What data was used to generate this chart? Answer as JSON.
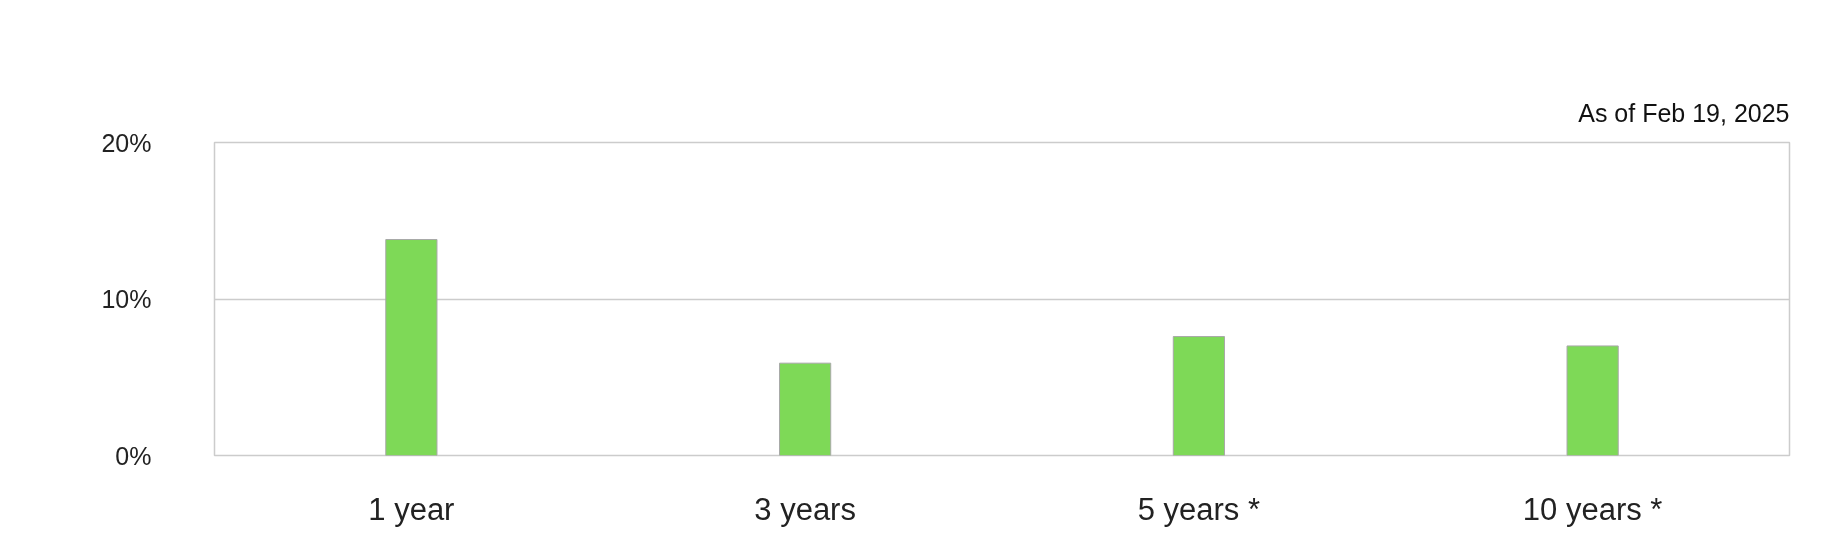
{
  "chart_data": {
    "type": "bar",
    "annotations": [
      "As of Feb 19, 2025"
    ],
    "categories": [
      "1 year",
      "3 years",
      "5 years *",
      "10 years *"
    ],
    "values": [
      13.8,
      5.9,
      7.6,
      7.0
    ],
    "color": "#7ed957",
    "ylim": [
      0,
      20
    ],
    "yticks": [
      {
        "value": 0,
        "label": "0%"
      },
      {
        "value": 10,
        "label": "10%"
      },
      {
        "value": 20,
        "label": "20%"
      }
    ],
    "grid": "y"
  }
}
